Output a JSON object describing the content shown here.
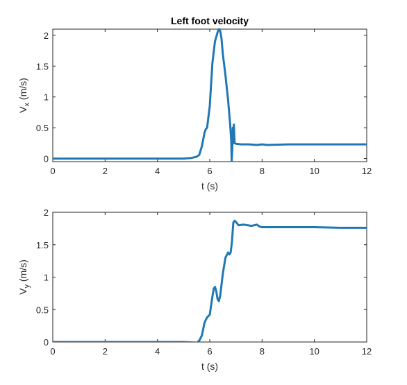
{
  "chart_data": [
    {
      "type": "line",
      "title": "Left foot velocity",
      "xlabel": "t (s)",
      "ylabel_main": "V",
      "ylabel_sub": "x",
      "ylabel_unit": " (m/s)",
      "xlim": [
        0,
        12
      ],
      "ylim": [
        -0.05,
        2.1
      ],
      "xticks": [
        0,
        2,
        4,
        6,
        8,
        10,
        12
      ],
      "yticks": [
        0,
        0.5,
        1,
        1.5,
        2
      ],
      "xtick_labels": [
        "0",
        "2",
        "4",
        "6",
        "8",
        "10",
        "12"
      ],
      "ytick_labels": [
        "0",
        "0.5",
        "1",
        "1.5",
        "2"
      ],
      "grid": false,
      "color": "#1f77b4",
      "series": [
        {
          "x": [
            0,
            1,
            2,
            3,
            4,
            5,
            5.3,
            5.5,
            5.6,
            5.7,
            5.8,
            5.85,
            5.9,
            6.0,
            6.05,
            6.1,
            6.2,
            6.3,
            6.35,
            6.4,
            6.45,
            6.5,
            6.6,
            6.7,
            6.78,
            6.82,
            6.84,
            6.86,
            6.88,
            6.9,
            6.92,
            6.95,
            7.0,
            7.2,
            7.5,
            7.8,
            8.0,
            8.2,
            9.0,
            10.0,
            11.0,
            12.0
          ],
          "y": [
            0.0,
            0.0,
            0.0,
            0.0,
            0.0,
            0.0,
            0.01,
            0.03,
            0.06,
            0.2,
            0.42,
            0.48,
            0.5,
            0.85,
            1.2,
            1.55,
            1.9,
            2.05,
            2.1,
            2.07,
            1.95,
            1.7,
            1.35,
            0.95,
            0.55,
            0.3,
            -0.05,
            0.15,
            0.5,
            0.25,
            0.55,
            0.25,
            0.24,
            0.23,
            0.23,
            0.22,
            0.23,
            0.22,
            0.23,
            0.23,
            0.23,
            0.23
          ]
        }
      ]
    },
    {
      "type": "line",
      "title": "",
      "xlabel": "t (s)",
      "ylabel_main": "V",
      "ylabel_sub": "y",
      "ylabel_unit": " (m/s)",
      "xlim": [
        0,
        12
      ],
      "ylim": [
        0,
        2
      ],
      "xticks": [
        0,
        2,
        4,
        6,
        8,
        10,
        12
      ],
      "yticks": [
        0,
        0.5,
        1,
        1.5,
        2
      ],
      "xtick_labels": [
        "0",
        "2",
        "4",
        "6",
        "8",
        "10",
        "12"
      ],
      "ytick_labels": [
        "0",
        "0.5",
        "1",
        "1.5",
        "2"
      ],
      "grid": false,
      "color": "#1f77b4",
      "series": [
        {
          "x": [
            0,
            1,
            2,
            3,
            4,
            5,
            5.5,
            5.6,
            5.7,
            5.8,
            5.9,
            6.0,
            6.1,
            6.15,
            6.2,
            6.25,
            6.3,
            6.35,
            6.4,
            6.5,
            6.6,
            6.7,
            6.75,
            6.8,
            6.85,
            6.9,
            6.95,
            7.0,
            7.1,
            7.3,
            7.6,
            7.8,
            7.9,
            8.0,
            9.0,
            10.0,
            11.0,
            12.0
          ],
          "y": [
            0.0,
            0.0,
            0.0,
            0.0,
            0.0,
            0.0,
            -0.01,
            0.02,
            0.1,
            0.3,
            0.38,
            0.42,
            0.7,
            0.82,
            0.85,
            0.78,
            0.66,
            0.63,
            0.72,
            1.05,
            1.3,
            1.38,
            1.35,
            1.38,
            1.55,
            1.84,
            1.87,
            1.85,
            1.8,
            1.81,
            1.79,
            1.81,
            1.78,
            1.77,
            1.77,
            1.77,
            1.76,
            1.76
          ]
        }
      ]
    }
  ]
}
